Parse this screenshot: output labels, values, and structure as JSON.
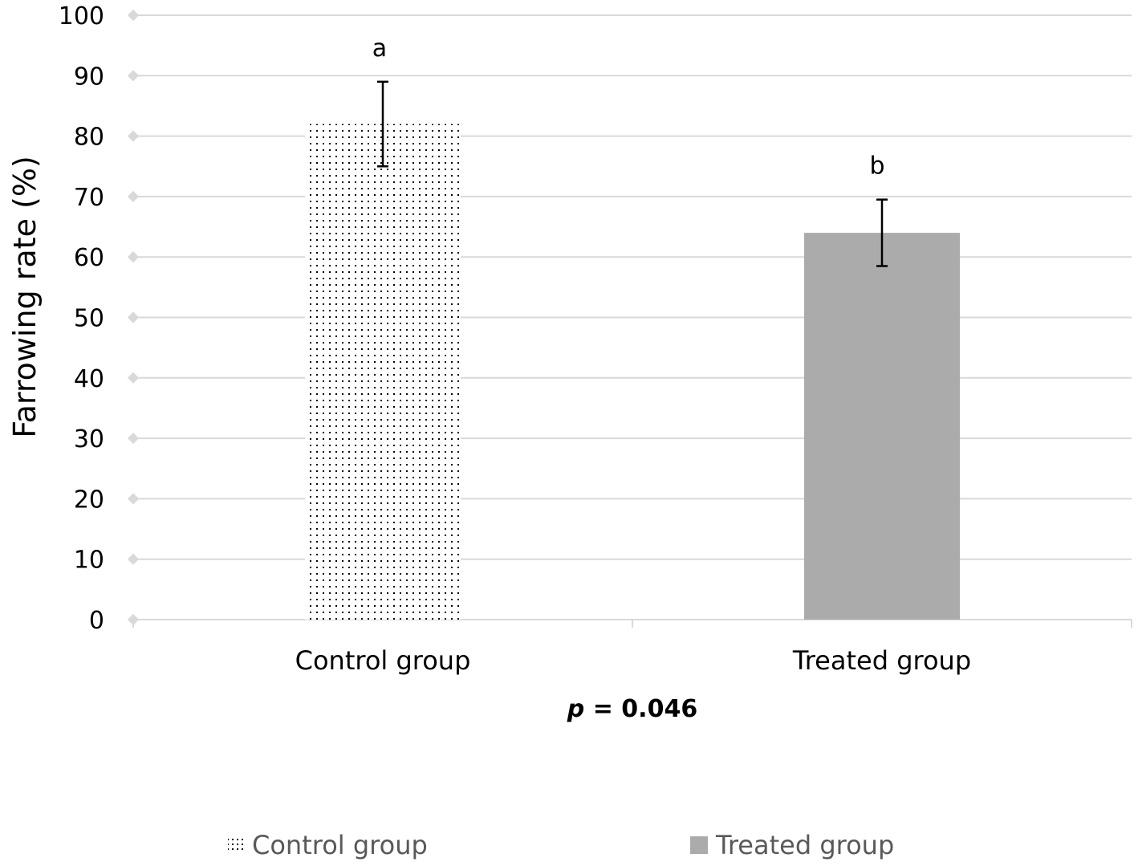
{
  "chart_data": {
    "type": "bar",
    "categories": [
      "Control group",
      "Treated group"
    ],
    "series": [
      {
        "name": "Control group",
        "values": [
          82,
          null
        ],
        "error": [
          7,
          null
        ],
        "pattern": "dotted"
      },
      {
        "name": "Treated group",
        "values": [
          null,
          64
        ],
        "error": [
          null,
          5.5
        ],
        "color": "#ababab"
      }
    ],
    "sig_letters": [
      "a",
      "b"
    ],
    "ylabel": "Farrowing rate (%)",
    "xlabel": "",
    "ylim": [
      0,
      100
    ],
    "yticks": [
      "0",
      "10",
      "20",
      "30",
      "40",
      "50",
      "60",
      "70",
      "80",
      "90",
      "100"
    ],
    "grid": true,
    "legend": "bottom",
    "p_value": {
      "symbol": "p",
      "text": " = 0.046"
    },
    "colors": {
      "grid": "#d9d9d9",
      "axis": "#d9d9d9",
      "treated_bar": "#ababab",
      "dots": "#000000",
      "legend_text": "#595959"
    }
  }
}
